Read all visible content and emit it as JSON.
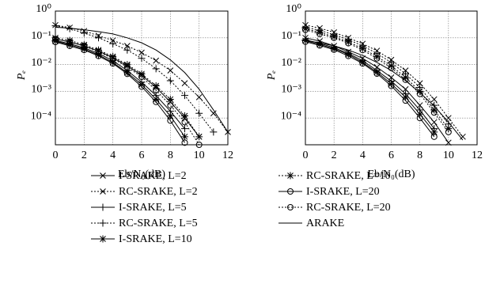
{
  "chart_data": [
    {
      "type": "line",
      "xlabel": "Eb/N₀(dB)",
      "ylabel": "Pₑ",
      "log_y": true,
      "grid": true,
      "x": [
        0,
        1,
        2,
        3,
        4,
        5,
        6,
        7,
        8,
        9,
        10,
        11,
        12
      ],
      "xlim": [
        0,
        12
      ],
      "xticks": [
        0,
        2,
        4,
        6,
        8,
        10,
        12
      ],
      "ylim": [
        1e-05,
        1
      ],
      "yticks": [
        {
          "value": 1,
          "label": "10⁰"
        },
        {
          "value": 0.1,
          "label": "10⁻¹"
        },
        {
          "value": 0.01,
          "label": "10⁻²"
        },
        {
          "value": 0.001,
          "label": "10⁻³"
        },
        {
          "value": 0.0001,
          "label": "10⁻⁴"
        }
      ],
      "series": [
        {
          "name": "I-SRAKE, L=2",
          "color": "#000000",
          "marker": "x",
          "dashed": false,
          "values": [
            0.09,
            0.07,
            0.05,
            0.032,
            0.018,
            0.009,
            0.004,
            0.0014,
            0.0004,
            0.0001,
            2e-05,
            null,
            null
          ]
        },
        {
          "name": "RC-SRAKE, L=2",
          "color": "#000000",
          "marker": "x",
          "dashed": true,
          "values": [
            0.3,
            0.24,
            0.18,
            0.12,
            0.08,
            0.05,
            0.028,
            0.014,
            0.006,
            0.002,
            0.0006,
            0.00015,
            3e-05
          ]
        },
        {
          "name": "I-SRAKE, L=5",
          "color": "#000000",
          "marker": "plus",
          "dashed": false,
          "values": [
            0.08,
            0.06,
            0.042,
            0.026,
            0.014,
            0.006,
            0.0022,
            0.0007,
            0.00018,
            4e-05,
            null,
            null,
            null
          ]
        },
        {
          "name": "RC-SRAKE, L=5",
          "color": "#000000",
          "marker": "plus",
          "dashed": true,
          "values": [
            0.28,
            0.22,
            0.15,
            0.1,
            0.06,
            0.035,
            0.017,
            0.007,
            0.0025,
            0.0007,
            0.00015,
            3e-05,
            null
          ]
        },
        {
          "name": "I-SRAKE, L=10",
          "color": "#000000",
          "marker": "star",
          "dashed": false,
          "values": [
            0.075,
            0.055,
            0.038,
            0.023,
            0.012,
            0.005,
            0.0018,
            0.0005,
            0.00012,
            2e-05,
            null,
            null,
            null
          ]
        },
        {
          "name": "RC-SRAKE, L=10",
          "color": "#000000",
          "marker": "star",
          "dashed": true,
          "values": [
            0.1,
            0.08,
            0.055,
            0.035,
            0.02,
            0.01,
            0.0045,
            0.0016,
            0.0005,
            0.00012,
            2e-05,
            null,
            null
          ]
        },
        {
          "name": "I-SRAKE, L=20",
          "color": "#000000",
          "marker": "circle",
          "dashed": false,
          "values": [
            0.07,
            0.05,
            0.035,
            0.021,
            0.011,
            0.0045,
            0.0015,
            0.0004,
            8e-05,
            1.2e-05,
            null,
            null,
            null
          ]
        },
        {
          "name": "RC-SRAKE, L=20",
          "color": "#000000",
          "marker": "circle",
          "dashed": true,
          "values": [
            0.09,
            0.07,
            0.05,
            0.03,
            0.017,
            0.008,
            0.0035,
            0.0011,
            0.0003,
            7e-05,
            1e-05,
            null,
            null
          ]
        },
        {
          "name": "ARAKE",
          "color": "#000000",
          "marker": "none",
          "dashed": false,
          "values": [
            0.25,
            0.23,
            0.2,
            0.17,
            0.14,
            0.1,
            0.065,
            0.035,
            0.015,
            0.005,
            0.0012,
            0.0002,
            3e-05
          ]
        }
      ]
    },
    {
      "type": "line",
      "xlabel": "Eb/N₀(dB)",
      "ylabel": "Pₑ",
      "log_y": true,
      "grid": true,
      "x": [
        0,
        1,
        2,
        3,
        4,
        5,
        6,
        7,
        8,
        9,
        10,
        11,
        12
      ],
      "xlim": [
        0,
        12
      ],
      "xticks": [
        0,
        2,
        4,
        6,
        8,
        10,
        12
      ],
      "ylim": [
        1e-05,
        1
      ],
      "yticks": [
        {
          "value": 1,
          "label": "10⁰"
        },
        {
          "value": 0.1,
          "label": "10⁻¹"
        },
        {
          "value": 0.01,
          "label": "10⁻²"
        },
        {
          "value": 0.001,
          "label": "10⁻³"
        },
        {
          "value": 0.0001,
          "label": "10⁻⁴"
        }
      ],
      "series": [
        {
          "color": "#000000",
          "marker": "x",
          "dashed": false,
          "values": [
            0.1,
            0.075,
            0.05,
            0.03,
            0.017,
            0.008,
            0.0033,
            0.0012,
            0.0003,
            7e-05,
            1.2e-05,
            null,
            null
          ]
        },
        {
          "color": "#000000",
          "marker": "x",
          "dashed": true,
          "values": [
            0.3,
            0.23,
            0.16,
            0.1,
            0.06,
            0.033,
            0.015,
            0.006,
            0.002,
            0.0005,
            0.0001,
            2e-05,
            null
          ]
        },
        {
          "color": "#000000",
          "marker": "plus",
          "dashed": false,
          "values": [
            0.085,
            0.062,
            0.043,
            0.026,
            0.014,
            0.006,
            0.0024,
            0.0008,
            0.0002,
            4e-05,
            null,
            null,
            null
          ]
        },
        {
          "color": "#000000",
          "marker": "plus",
          "dashed": true,
          "values": [
            0.25,
            0.19,
            0.13,
            0.085,
            0.05,
            0.026,
            0.012,
            0.0045,
            0.0014,
            0.0003,
            6e-05,
            null,
            null
          ]
        },
        {
          "color": "#000000",
          "marker": "star",
          "dashed": false,
          "values": [
            0.078,
            0.057,
            0.039,
            0.024,
            0.012,
            0.0052,
            0.0019,
            0.0006,
            0.00014,
            3e-05,
            null,
            null,
            null
          ]
        },
        {
          "color": "#000000",
          "marker": "star",
          "dashed": true,
          "values": [
            0.22,
            0.16,
            0.11,
            0.07,
            0.04,
            0.02,
            0.009,
            0.0033,
            0.001,
            0.0002,
            4e-05,
            null,
            null
          ]
        },
        {
          "color": "#000000",
          "marker": "circle",
          "dashed": false,
          "values": [
            0.072,
            0.052,
            0.036,
            0.021,
            0.011,
            0.0046,
            0.0016,
            0.00045,
            0.0001,
            2e-05,
            null,
            null,
            null
          ]
        },
        {
          "color": "#000000",
          "marker": "circle",
          "dashed": true,
          "values": [
            0.2,
            0.14,
            0.1,
            0.063,
            0.035,
            0.017,
            0.0075,
            0.0027,
            0.0008,
            0.00016,
            3e-05,
            null,
            null
          ]
        },
        {
          "color": "#000000",
          "marker": "none",
          "dashed": false,
          "values": [
            0.08,
            0.065,
            0.05,
            0.035,
            0.022,
            0.012,
            0.006,
            0.0025,
            0.0009,
            0.00028,
            7e-05,
            1.5e-05,
            null
          ]
        }
      ]
    }
  ]
}
